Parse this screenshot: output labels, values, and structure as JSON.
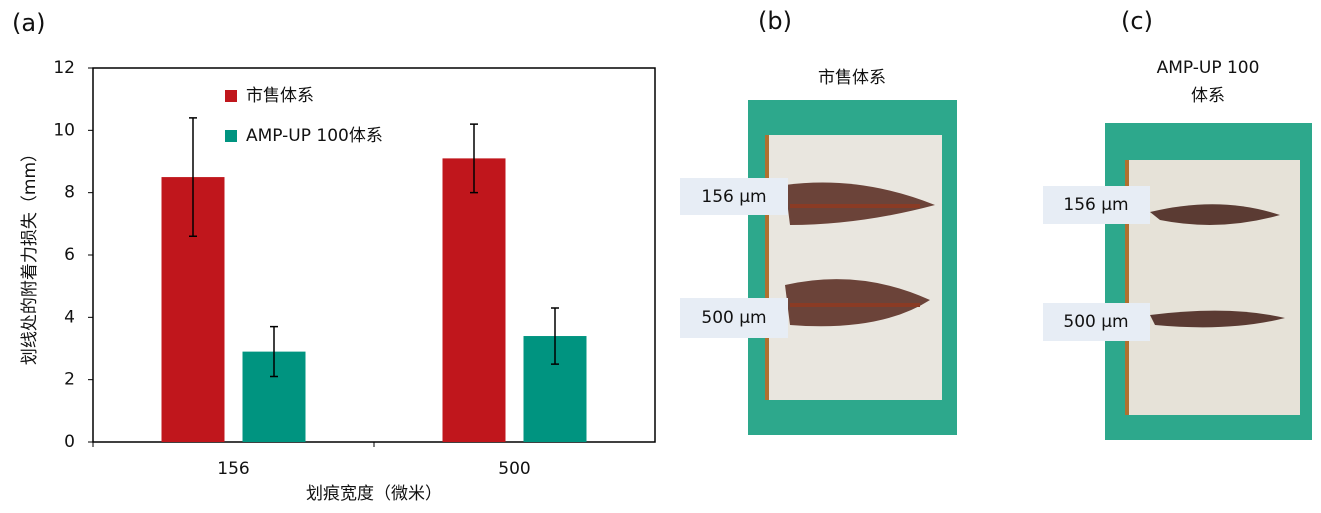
{
  "chart_data": {
    "type": "bar",
    "panel_label": "(a)",
    "categories": [
      "156",
      "500"
    ],
    "series": [
      {
        "name": "市售体系",
        "color": "#c0161c",
        "values": [
          8.5,
          9.1
        ],
        "errors": [
          1.9,
          1.1
        ]
      },
      {
        "name": "AMP-UP 100体系",
        "color": "#009480",
        "values": [
          2.9,
          3.4
        ],
        "errors": [
          0.8,
          0.9
        ]
      }
    ],
    "ylim": [
      0,
      12
    ],
    "yticks": [
      0,
      2,
      4,
      6,
      8,
      10,
      12
    ],
    "y_label": "划线处的附着力损失（mm）",
    "x_label": "划痕宽度（微米）"
  },
  "panels": [
    {
      "label": "(b)",
      "title": [
        "市售体系"
      ],
      "scratch_labels": [
        "156 µm",
        "500 µm"
      ]
    },
    {
      "label": "(c)",
      "title": [
        "AMP-UP 100",
        "体系"
      ],
      "scratch_labels": [
        "156 µm",
        "500 µm"
      ]
    }
  ]
}
